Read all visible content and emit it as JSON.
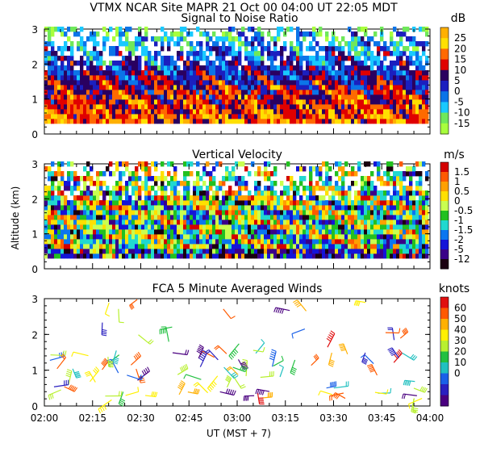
{
  "header": {
    "line1": "VTMX  NCAR Site  MAPR 21 Oct 00  04:00 UT  22:05  MDT",
    "snr_title": "Signal to Noise Ratio"
  },
  "shared_y_label": "Altitude (km)",
  "x_axis_label": "UT  (MST + 7)",
  "chart_data": [
    {
      "type": "heatmap",
      "title": "Signal to Noise Ratio",
      "x": {
        "ticks": [
          "02:00",
          "02:15",
          "02:30",
          "02:45",
          "03:00",
          "03:15",
          "03:30",
          "03:45",
          "04:00"
        ],
        "range": [
          "02:00",
          "04:00"
        ]
      },
      "y": {
        "label": "Altitude (km)",
        "ticks": [
          0,
          1,
          2,
          3
        ],
        "range": [
          0,
          3
        ]
      },
      "colorbar": {
        "unit": "dB",
        "labels": [
          "25",
          "20",
          "15",
          "10",
          "5",
          "0",
          "-5",
          "-10",
          "-15"
        ],
        "colors": [
          "#ffb000",
          "#ffe000",
          "#ff6a00",
          "#e00000",
          "#2a0060",
          "#1b1fbf",
          "#0b74e8",
          "#19c9ff",
          "#6fe85a",
          "#a8ff3c"
        ]
      },
      "data_range_km": [
        0.3,
        3.0
      ]
    },
    {
      "type": "heatmap",
      "title": "Vertical Velocity",
      "x": {
        "ticks": [
          "02:00",
          "02:15",
          "02:30",
          "02:45",
          "03:00",
          "03:15",
          "03:30",
          "03:45",
          "04:00"
        ],
        "range": [
          "02:00",
          "04:00"
        ]
      },
      "y": {
        "label": "Altitude (km)",
        "ticks": [
          0,
          1,
          2,
          3
        ],
        "range": [
          0,
          3
        ]
      },
      "colorbar": {
        "unit": "m/s",
        "labels": [
          "1.5",
          "1",
          "0.5",
          "0",
          "-0.5",
          "-1",
          "-1.5",
          "-2",
          "-5",
          "-12"
        ],
        "colors": [
          "#d40000",
          "#ff5a00",
          "#ffa000",
          "#ffe000",
          "#c9ff50",
          "#22c020",
          "#20d8d0",
          "#0a76f0",
          "#1414d8",
          "#3a0088",
          "#1a0010"
        ]
      },
      "data_range_km": [
        0.3,
        3.0
      ]
    },
    {
      "type": "scatter",
      "title": "FCA 5 Minute Averaged Winds",
      "x": {
        "ticks": [
          "02:00",
          "02:15",
          "02:30",
          "02:45",
          "03:00",
          "03:15",
          "03:30",
          "03:45",
          "04:00"
        ],
        "range": [
          "02:00",
          "04:00"
        ]
      },
      "y": {
        "label": "Altitude (km)",
        "ticks": [
          0,
          1,
          2,
          3
        ],
        "range": [
          0,
          3
        ]
      },
      "colorbar": {
        "unit": "knots",
        "labels": [
          "60",
          "50",
          "40",
          "30",
          "20",
          "10",
          "0"
        ],
        "colors": [
          "#e01010",
          "#ff5a00",
          "#ffb000",
          "#fff000",
          "#b8f030",
          "#22c040",
          "#20c0c0",
          "#1a60e8",
          "#2a20c0",
          "#4a0080"
        ]
      },
      "marks": "wind barbs"
    }
  ]
}
